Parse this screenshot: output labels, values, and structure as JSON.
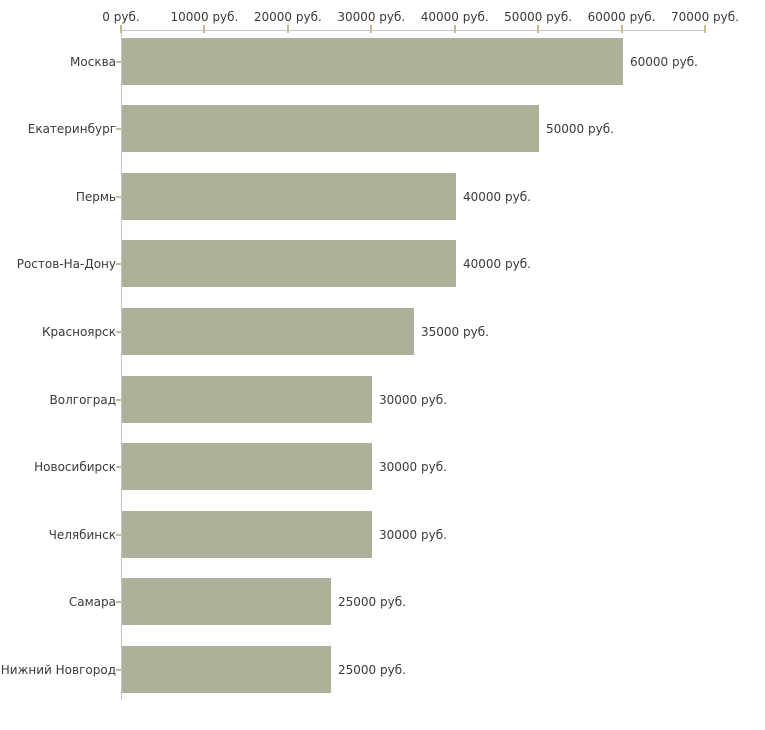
{
  "chart_data": {
    "type": "bar",
    "orientation": "horizontal",
    "title": "",
    "xlabel": "",
    "ylabel": "",
    "unit": "руб.",
    "categories": [
      "Москва",
      "Екатеринбург",
      "Пермь",
      "Ростов-На-Дону",
      "Красноярск",
      "Волгоград",
      "Новосибирск",
      "Челябинск",
      "Самара",
      "Нижний Новгород"
    ],
    "values": [
      60000,
      50000,
      40000,
      40000,
      35000,
      30000,
      30000,
      30000,
      25000,
      25000
    ],
    "value_labels": [
      "60000 руб.",
      "50000 руб.",
      "40000 руб.",
      "40000 руб.",
      "35000 руб.",
      "30000 руб.",
      "30000 руб.",
      "30000 руб.",
      "25000 руб.",
      "25000 руб."
    ],
    "x_axis": {
      "position": "top",
      "range": [
        0,
        70000
      ],
      "tick_values": [
        0,
        10000,
        20000,
        30000,
        40000,
        50000,
        60000,
        70000
      ],
      "tick_labels": [
        "0 руб.",
        "10000 руб.",
        "20000 руб.",
        "30000 руб.",
        "40000 руб.",
        "50000 руб.",
        "60000 руб.",
        "70000 руб."
      ]
    },
    "legend": {
      "visible": false
    },
    "grid": false,
    "colors": {
      "bar": "#acb299",
      "axis_line": "#c4c4c4",
      "tick_mark": "#c5bc8e",
      "text": "#3a3a3a",
      "background": "#ffffff"
    }
  }
}
